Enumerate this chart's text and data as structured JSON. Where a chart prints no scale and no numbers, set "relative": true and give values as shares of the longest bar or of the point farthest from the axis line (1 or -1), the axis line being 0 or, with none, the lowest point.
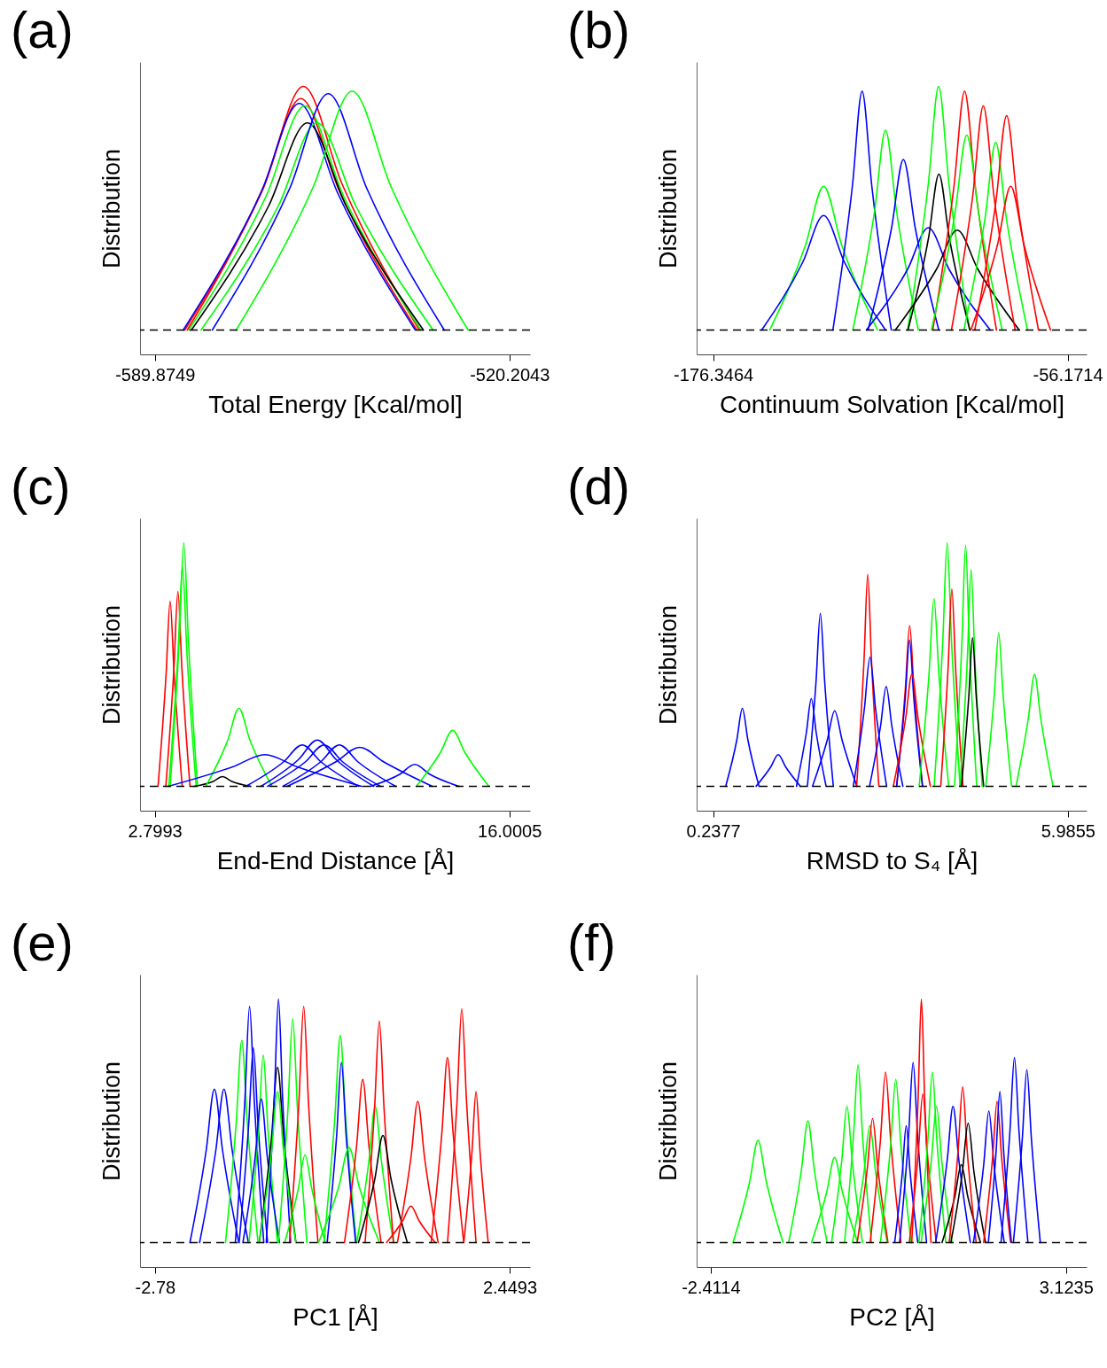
{
  "chart_data": [
    {
      "type": "line",
      "title": "(a)",
      "xlabel": "Total Energy [Kcal/mol]",
      "ylabel": "Distribution",
      "relative": true,
      "tick_labels": "x",
      "xlim": [
        -592.79,
        -516.15
      ],
      "xticks": [
        -589.8749,
        -520.2043
      ],
      "ref_lines": [
        {
          "axis": "y",
          "value": 0,
          "line_style": "dashed",
          "color": "#000000"
        }
      ],
      "series": [
        {
          "color": "#ff0000",
          "x": [
            -583.5,
            -568.3,
            -560.7,
            -553.1,
            -537.9
          ],
          "values": [
            0,
            0.6,
            1,
            0.6,
            0
          ]
        },
        {
          "color": "#ff0000",
          "x": [
            -584.0,
            -568.8,
            -561.2,
            -553.6,
            -538.4
          ],
          "values": [
            0,
            0.57,
            0.95,
            0.57,
            0
          ]
        },
        {
          "color": "#0000ff",
          "x": [
            -584.3,
            -569.1,
            -561.5,
            -553.9,
            -538.7
          ],
          "values": [
            0,
            0.56,
            0.93,
            0.56,
            0
          ]
        },
        {
          "color": "#00ff00",
          "x": [
            -583.2,
            -568.0,
            -560.4,
            -552.8,
            -537.6
          ],
          "values": [
            0,
            0.55,
            0.92,
            0.55,
            0
          ]
        },
        {
          "color": "#000000",
          "x": [
            -582.7,
            -567.5,
            -559.9,
            -552.3,
            -537.1
          ],
          "values": [
            0,
            0.51,
            0.85,
            0.51,
            0
          ]
        },
        {
          "color": "#00ff00",
          "x": [
            -580.8,
            -565.6,
            -558.0,
            -550.4,
            -535.2
          ],
          "values": [
            0,
            0.51,
            0.85,
            0.51,
            0
          ]
        },
        {
          "color": "#0000ff",
          "x": [
            -578.6,
            -563.4,
            -555.8,
            -548.2,
            -533.0
          ],
          "values": [
            0,
            0.58,
            0.97,
            0.58,
            0
          ]
        },
        {
          "color": "#00ff00",
          "x": [
            -573.9,
            -558.7,
            -551.1,
            -543.5,
            -528.3
          ],
          "values": [
            0,
            0.59,
            0.98,
            0.59,
            0
          ]
        }
      ]
    },
    {
      "type": "line",
      "title": "(b)",
      "xlabel": "Continuum Solvation [Kcal/mol]",
      "ylabel": "Distribution",
      "relative": true,
      "tick_labels": "x",
      "xlim": [
        -181.95,
        -49.73
      ],
      "xticks": [
        -176.3464,
        -56.1714
      ],
      "ref_lines": [
        {
          "axis": "y",
          "value": 0,
          "line_style": "dashed",
          "color": "#000000"
        }
      ],
      "series": [
        {
          "color": "#00ff00",
          "x": [
            -157.2,
            -145.0,
            -138.9,
            -132.8,
            -120.6
          ],
          "values": [
            0,
            0.35,
            0.59,
            0.35,
            0
          ]
        },
        {
          "color": "#0000ff",
          "x": [
            -159.9,
            -145.9,
            -138.9,
            -131.9,
            -117.9
          ],
          "values": [
            0,
            0.28,
            0.47,
            0.28,
            0
          ]
        },
        {
          "color": "#0000ff",
          "x": [
            -135.75,
            -129.15,
            -125.85,
            -122.55,
            -115.95
          ],
          "values": [
            0,
            0.59,
            0.98,
            0.59,
            0
          ]
        },
        {
          "color": "#00ff00",
          "x": [
            -129.0,
            -121.6,
            -117.9,
            -114.2,
            -106.8
          ],
          "values": [
            0,
            0.49,
            0.82,
            0.49,
            0
          ]
        },
        {
          "color": "#0000ff",
          "x": [
            -123.85,
            -115.85,
            -111.85,
            -107.85,
            -99.85
          ],
          "values": [
            0,
            0.42,
            0.7,
            0.42,
            0
          ]
        },
        {
          "color": "#0000ff",
          "x": [
            -124.4,
            -110.4,
            -103.4,
            -96.4,
            -82.4
          ],
          "values": [
            0,
            0.25,
            0.42,
            0.25,
            0
          ]
        },
        {
          "color": "#00ff00",
          "x": [
            -110.4,
            -103.4,
            -99.9,
            -96.4,
            -89.4
          ],
          "values": [
            0,
            0.6,
            1,
            0.6,
            0
          ]
        },
        {
          "color": "#000000",
          "x": [
            -110.3,
            -103.3,
            -99.8,
            -96.3,
            -89.3
          ],
          "values": [
            0,
            0.38,
            0.64,
            0.38,
            0
          ]
        },
        {
          "color": "#000000",
          "x": [
            -114.6,
            -100.6,
            -93.6,
            -86.6,
            -72.6
          ],
          "values": [
            0,
            0.25,
            0.41,
            0.25,
            0
          ]
        },
        {
          "color": "#ff0000",
          "x": [
            -101.9,
            -94.7,
            -91.1,
            -87.5,
            -80.3
          ],
          "values": [
            0,
            0.59,
            0.98,
            0.59,
            0
          ]
        },
        {
          "color": "#00ff00",
          "x": [
            -102.35,
            -94.35,
            -90.35,
            -86.35,
            -78.35
          ],
          "values": [
            0,
            0.48,
            0.8,
            0.48,
            0
          ]
        },
        {
          "color": "#ff0000",
          "x": [
            -95.55,
            -88.35,
            -84.75,
            -81.15,
            -73.95
          ],
          "values": [
            0,
            0.55,
            0.92,
            0.55,
            0
          ]
        },
        {
          "color": "#00ff00",
          "x": [
            -91.35,
            -84.15,
            -80.55,
            -76.95,
            -69.75
          ],
          "values": [
            0,
            0.46,
            0.77,
            0.46,
            0
          ]
        },
        {
          "color": "#ff0000",
          "x": [
            -87.65,
            -80.45,
            -76.85,
            -73.25,
            -66.05
          ],
          "values": [
            0,
            0.53,
            0.88,
            0.53,
            0
          ]
        },
        {
          "color": "#ff0000",
          "x": [
            -88.95,
            -79.95,
            -75.45,
            -70.95,
            -61.95
          ],
          "values": [
            0,
            0.35,
            0.59,
            0.35,
            0
          ]
        }
      ]
    },
    {
      "type": "line",
      "title": "(c)",
      "xlabel": "End-End Distance [Å]",
      "ylabel": "Distribution",
      "relative": true,
      "tick_labels": "x",
      "xlim": [
        2.25,
        16.77
      ],
      "xticks": [
        2.7993,
        16.0005
      ],
      "ref_lines": [
        {
          "axis": "y",
          "value": 0,
          "line_style": "dashed",
          "color": "#000000"
        }
      ],
      "series": [
        {
          "color": "#ff0000",
          "x": [
            2.92,
            3.22,
            3.37,
            3.52,
            3.82
          ],
          "values": [
            0,
            0.46,
            0.76,
            0.46,
            0
          ]
        },
        {
          "color": "#ff0000",
          "x": [
            3.21,
            3.51,
            3.66,
            3.81,
            4.11
          ],
          "values": [
            0,
            0.48,
            0.8,
            0.48,
            0
          ]
        },
        {
          "color": "#00ff00",
          "x": [
            3.32,
            3.66,
            3.83,
            4.0,
            4.34
          ],
          "values": [
            0,
            0.54,
            0.9,
            0.54,
            0
          ]
        },
        {
          "color": "#00ff00",
          "x": [
            3.37,
            3.71,
            3.88,
            4.05,
            4.39
          ],
          "values": [
            0,
            0.6,
            1,
            0.6,
            0
          ]
        },
        {
          "color": "#000000",
          "x": [
            4.27,
            4.97,
            5.32,
            5.67,
            6.37
          ],
          "values": [
            0,
            0.02,
            0.04,
            0.02,
            0
          ]
        },
        {
          "color": "#00ff00",
          "x": [
            4.7,
            5.52,
            5.93,
            6.34,
            7.16
          ],
          "values": [
            0,
            0.19,
            0.32,
            0.19,
            0
          ]
        },
        {
          "color": "#0000ff",
          "x": [
            3.3,
            5.7,
            6.9,
            8.1,
            10.5
          ],
          "values": [
            0,
            0.08,
            0.13,
            0.08,
            0
          ]
        },
        {
          "color": "#0000ff",
          "x": [
            6.19,
            7.59,
            8.29,
            8.99,
            10.39
          ],
          "values": [
            0,
            0.1,
            0.17,
            0.1,
            0
          ]
        },
        {
          "color": "#0000ff",
          "x": [
            6.75,
            8.15,
            8.85,
            9.55,
            10.95
          ],
          "values": [
            0,
            0.11,
            0.19,
            0.11,
            0
          ]
        },
        {
          "color": "#0000ff",
          "x": [
            7.0,
            8.4,
            9.1,
            9.8,
            11.2
          ],
          "values": [
            0,
            0.1,
            0.17,
            0.1,
            0
          ]
        },
        {
          "color": "#0000ff",
          "x": [
            7.57,
            8.97,
            9.67,
            10.37,
            11.77
          ],
          "values": [
            0,
            0.1,
            0.17,
            0.1,
            0
          ]
        },
        {
          "color": "#0000ff",
          "x": [
            7.73,
            9.53,
            10.43,
            11.33,
            13.13
          ],
          "values": [
            0,
            0.1,
            0.16,
            0.1,
            0
          ]
        },
        {
          "color": "#0000ff",
          "x": [
            10.83,
            11.93,
            12.48,
            13.03,
            14.13
          ],
          "values": [
            0,
            0.05,
            0.09,
            0.05,
            0
          ]
        },
        {
          "color": "#00ff00",
          "x": [
            12.54,
            13.44,
            13.89,
            14.34,
            15.24
          ],
          "values": [
            0,
            0.14,
            0.23,
            0.14,
            0
          ]
        }
      ]
    },
    {
      "type": "line",
      "title": "(d)",
      "xlabel": "RMSD to S₄ [Å]",
      "ylabel": "Distribution",
      "relative": true,
      "tick_labels": "x",
      "xlim": [
        -0.03,
        6.29
      ],
      "xticks": [
        0.2377,
        5.9855
      ],
      "ref_lines": [
        {
          "axis": "y",
          "value": 0,
          "line_style": "dashed",
          "color": "#000000"
        }
      ],
      "series": [
        {
          "color": "#0000ff",
          "x": [
            0.441,
            0.621,
            0.711,
            0.801,
            0.981
          ],
          "values": [
            0,
            0.19,
            0.32,
            0.19,
            0
          ]
        },
        {
          "color": "#0000ff",
          "x": [
            0.932,
            1.172,
            1.292,
            1.412,
            1.652
          ],
          "values": [
            0,
            0.08,
            0.13,
            0.08,
            0
          ]
        },
        {
          "color": "#0000ff",
          "x": [
            1.588,
            1.748,
            1.828,
            1.908,
            2.068
          ],
          "values": [
            0,
            0.22,
            0.36,
            0.22,
            0
          ]
        },
        {
          "color": "#0000ff",
          "x": [
            1.765,
            1.905,
            1.975,
            2.045,
            2.185
          ],
          "values": [
            0,
            0.43,
            0.71,
            0.43,
            0
          ]
        },
        {
          "color": "#0000ff",
          "x": [
            1.847,
            2.087,
            2.207,
            2.327,
            2.567
          ],
          "values": [
            0,
            0.19,
            0.31,
            0.19,
            0
          ]
        },
        {
          "color": "#ff0000",
          "x": [
            2.563,
            2.683,
            2.743,
            2.803,
            2.923
          ],
          "values": [
            0,
            0.52,
            0.87,
            0.52,
            0
          ]
        },
        {
          "color": "#0000ff",
          "x": [
            2.509,
            2.689,
            2.779,
            2.869,
            3.049
          ],
          "values": [
            0,
            0.32,
            0.53,
            0.32,
            0
          ]
        },
        {
          "color": "#0000ff",
          "x": [
            2.772,
            2.952,
            3.042,
            3.132,
            3.312
          ],
          "values": [
            0,
            0.25,
            0.41,
            0.25,
            0
          ]
        },
        {
          "color": "#ff0000",
          "x": [
            3.212,
            3.352,
            3.422,
            3.492,
            3.632
          ],
          "values": [
            0,
            0.4,
            0.66,
            0.4,
            0
          ]
        },
        {
          "color": "#0000ff",
          "x": [
            3.21,
            3.35,
            3.42,
            3.49,
            3.63
          ],
          "values": [
            0,
            0.36,
            0.6,
            0.36,
            0
          ]
        },
        {
          "color": "#ff0000",
          "x": [
            3.158,
            3.358,
            3.458,
            3.558,
            3.758
          ],
          "values": [
            0,
            0.28,
            0.46,
            0.28,
            0
          ]
        },
        {
          "color": "#00ff00",
          "x": [
            3.576,
            3.736,
            3.816,
            3.896,
            4.056
          ],
          "values": [
            0,
            0.46,
            0.77,
            0.46,
            0
          ]
        },
        {
          "color": "#00ff00",
          "x": [
            3.82,
            3.96,
            4.03,
            4.1,
            4.24
          ],
          "values": [
            0,
            0.6,
            1,
            0.6,
            0
          ]
        },
        {
          "color": "#ff0000",
          "x": [
            3.926,
            4.046,
            4.106,
            4.166,
            4.286
          ],
          "values": [
            0,
            0.49,
            0.81,
            0.49,
            0
          ]
        },
        {
          "color": "#00ff00",
          "x": [
            4.149,
            4.269,
            4.329,
            4.389,
            4.509
          ],
          "values": [
            0,
            0.59,
            0.99,
            0.59,
            0
          ]
        },
        {
          "color": "#00ff00",
          "x": [
            4.238,
            4.358,
            4.418,
            4.478,
            4.598
          ],
          "values": [
            0,
            0.53,
            0.89,
            0.53,
            0
          ]
        },
        {
          "color": "#000000",
          "x": [
            4.261,
            4.381,
            4.441,
            4.501,
            4.621
          ],
          "values": [
            0,
            0.37,
            0.61,
            0.37,
            0
          ]
        },
        {
          "color": "#00ff00",
          "x": [
            4.655,
            4.795,
            4.865,
            4.935,
            5.075
          ],
          "values": [
            0,
            0.38,
            0.63,
            0.38,
            0
          ]
        },
        {
          "color": "#00ff00",
          "x": [
            5.146,
            5.346,
            5.446,
            5.546,
            5.746
          ],
          "values": [
            0,
            0.28,
            0.46,
            0.28,
            0
          ]
        }
      ]
    },
    {
      "type": "line",
      "title": "(e)",
      "xlabel": "PC1 [Å]",
      "ylabel": "Distribution",
      "relative": true,
      "tick_labels": "x",
      "xlim": [
        -3.0,
        2.75
      ],
      "xticks": [
        -2.78,
        2.4493
      ],
      "ref_lines": [
        {
          "axis": "y",
          "value": 0,
          "line_style": "dashed",
          "color": "#000000"
        }
      ],
      "series": [
        {
          "color": "#0000ff",
          "x": [
            -2.264,
            -2.024,
            -1.904,
            -1.784,
            -1.544
          ],
          "values": [
            0,
            0.38,
            0.63,
            0.38,
            0
          ]
        },
        {
          "color": "#0000ff",
          "x": [
            -2.122,
            -1.882,
            -1.762,
            -1.642,
            -1.402
          ],
          "values": [
            0,
            0.38,
            0.63,
            0.38,
            0
          ]
        },
        {
          "color": "#00ff00",
          "x": [
            -1.74,
            -1.58,
            -1.5,
            -1.42,
            -1.26
          ],
          "values": [
            0,
            0.5,
            0.83,
            0.5,
            0
          ]
        },
        {
          "color": "#0000ff",
          "x": [
            -1.595,
            -1.455,
            -1.385,
            -1.315,
            -1.175
          ],
          "values": [
            0,
            0.58,
            0.97,
            0.58,
            0
          ]
        },
        {
          "color": "#0000ff",
          "x": [
            -1.539,
            -1.399,
            -1.329,
            -1.259,
            -1.119
          ],
          "values": [
            0,
            0.48,
            0.8,
            0.48,
            0
          ]
        },
        {
          "color": "#00ff00",
          "x": [
            -1.393,
            -1.253,
            -1.183,
            -1.113,
            -0.973
          ],
          "values": [
            0,
            0.46,
            0.77,
            0.46,
            0
          ]
        },
        {
          "color": "#0000ff",
          "x": [
            -1.483,
            -1.303,
            -1.213,
            -1.123,
            -0.943
          ],
          "values": [
            0,
            0.35,
            0.59,
            0.35,
            0
          ]
        },
        {
          "color": "#000000",
          "x": [
            -1.242,
            -1.062,
            -0.972,
            -0.882,
            -0.702
          ],
          "values": [
            0,
            0.43,
            0.72,
            0.43,
            0
          ]
        },
        {
          "color": "#0000ff",
          "x": [
            -1.139,
            -1.019,
            -0.959,
            -0.899,
            -0.779
          ],
          "values": [
            0,
            0.6,
            1,
            0.6,
            0
          ]
        },
        {
          "color": "#00ff00",
          "x": [
            -1.242,
            -1.062,
            -0.972,
            -0.882,
            -0.702
          ],
          "values": [
            0,
            0.37,
            0.62,
            0.37,
            0
          ]
        },
        {
          "color": "#00ff00",
          "x": [
            -0.959,
            -0.819,
            -0.749,
            -0.679,
            -0.539
          ],
          "values": [
            0,
            0.55,
            0.92,
            0.55,
            0
          ]
        },
        {
          "color": "#ff0000",
          "x": [
            -0.797,
            -0.657,
            -0.587,
            -0.517,
            -0.377
          ],
          "values": [
            0,
            0.58,
            0.97,
            0.58,
            0
          ]
        },
        {
          "color": "#00ff00",
          "x": [
            -0.867,
            -0.667,
            -0.567,
            -0.467,
            -0.267
          ],
          "values": [
            0,
            0.22,
            0.36,
            0.22,
            0
          ]
        },
        {
          "color": "#00ff00",
          "x": [
            -0.288,
            -0.128,
            -0.048,
            0.032,
            0.192
          ],
          "values": [
            0,
            0.51,
            0.85,
            0.51,
            0
          ]
        },
        {
          "color": "#0000ff",
          "x": [
            -0.241,
            -0.101,
            -0.031,
            0.039,
            0.179
          ],
          "values": [
            0,
            0.44,
            0.74,
            0.44,
            0
          ]
        },
        {
          "color": "#00ff00",
          "x": [
            -0.369,
            -0.069,
            0.081,
            0.231,
            0.531
          ],
          "values": [
            0,
            0.23,
            0.39,
            0.23,
            0
          ]
        },
        {
          "color": "#ff0000",
          "x": [
            0.014,
            0.194,
            0.284,
            0.374,
            0.554
          ],
          "values": [
            0,
            0.4,
            0.67,
            0.4,
            0
          ]
        },
        {
          "color": "#00ff00",
          "x": [
            0.197,
            0.377,
            0.467,
            0.557,
            0.737
          ],
          "values": [
            0,
            0.34,
            0.56,
            0.34,
            0
          ]
        },
        {
          "color": "#ff0000",
          "x": [
            0.318,
            0.458,
            0.528,
            0.598,
            0.738
          ],
          "values": [
            0,
            0.55,
            0.91,
            0.55,
            0
          ]
        },
        {
          "color": "#000000",
          "x": [
            0.221,
            0.461,
            0.581,
            0.701,
            0.941
          ],
          "values": [
            0,
            0.26,
            0.44,
            0.26,
            0
          ]
        },
        {
          "color": "#ff0000",
          "x": [
            0.634,
            0.874,
            0.994,
            1.114,
            1.354
          ],
          "values": [
            0,
            0.09,
            0.15,
            0.09,
            0
          ]
        },
        {
          "color": "#ff0000",
          "x": [
            0.795,
            0.995,
            1.095,
            1.195,
            1.395
          ],
          "values": [
            0,
            0.35,
            0.58,
            0.35,
            0
          ]
        },
        {
          "color": "#ff0000",
          "x": [
            1.293,
            1.453,
            1.533,
            1.613,
            1.773
          ],
          "values": [
            0,
            0.46,
            0.76,
            0.46,
            0
          ]
        },
        {
          "color": "#ff0000",
          "x": [
            1.534,
            1.674,
            1.744,
            1.814,
            1.954
          ],
          "values": [
            0,
            0.58,
            0.96,
            0.58,
            0
          ]
        },
        {
          "color": "#ff0000",
          "x": [
            1.774,
            1.894,
            1.954,
            2.014,
            2.134
          ],
          "values": [
            0,
            0.37,
            0.62,
            0.37,
            0
          ]
        }
      ]
    },
    {
      "type": "line",
      "title": "(f)",
      "xlabel": "PC2 [Å]",
      "ylabel": "Distribution",
      "relative": true,
      "tick_labels": "x",
      "xlim": [
        -2.63,
        3.445
      ],
      "xticks": [
        -2.4114,
        3.1235
      ],
      "ref_lines": [
        {
          "axis": "y",
          "value": 0,
          "line_style": "dashed",
          "color": "#000000"
        }
      ],
      "series": [
        {
          "color": "#00ff00",
          "x": [
            -2.064,
            -1.804,
            -1.674,
            -1.544,
            -1.284
          ],
          "values": [
            0,
            0.25,
            0.42,
            0.25,
            0
          ]
        },
        {
          "color": "#00ff00",
          "x": [
            -1.197,
            -0.997,
            -0.897,
            -0.797,
            -0.597
          ],
          "values": [
            0,
            0.3,
            0.5,
            0.3,
            0
          ]
        },
        {
          "color": "#00ff00",
          "x": [
            -0.841,
            -0.601,
            -0.481,
            -0.361,
            -0.121
          ],
          "values": [
            0,
            0.21,
            0.35,
            0.21,
            0
          ]
        },
        {
          "color": "#00ff00",
          "x": [
            -0.528,
            -0.368,
            -0.288,
            -0.208,
            -0.048
          ],
          "values": [
            0,
            0.34,
            0.56,
            0.34,
            0
          ]
        },
        {
          "color": "#00ff00",
          "x": [
            -0.326,
            -0.186,
            -0.116,
            -0.046,
            0.094
          ],
          "values": [
            0,
            0.44,
            0.73,
            0.44,
            0
          ]
        },
        {
          "color": "#00ff00",
          "x": [
            -0.202,
            -0.022,
            0.068,
            0.158,
            0.338
          ],
          "values": [
            0,
            0.29,
            0.48,
            0.29,
            0
          ]
        },
        {
          "color": "#ff0000",
          "x": [
            -0.129,
            0.031,
            0.111,
            0.191,
            0.351
          ],
          "values": [
            0,
            0.31,
            0.51,
            0.31,
            0
          ]
        },
        {
          "color": "#ff0000",
          "x": [
            0.073,
            0.233,
            0.313,
            0.393,
            0.553
          ],
          "values": [
            0,
            0.42,
            0.7,
            0.42,
            0
          ]
        },
        {
          "color": "#00ff00",
          "x": [
            0.232,
            0.392,
            0.472,
            0.552,
            0.712
          ],
          "values": [
            0,
            0.4,
            0.67,
            0.4,
            0
          ]
        },
        {
          "color": "#0000ff",
          "x": [
            0.455,
            0.575,
            0.635,
            0.695,
            0.815
          ],
          "values": [
            0,
            0.29,
            0.48,
            0.29,
            0
          ]
        },
        {
          "color": "#0000ff",
          "x": [
            0.532,
            0.672,
            0.742,
            0.812,
            0.952
          ],
          "values": [
            0,
            0.44,
            0.74,
            0.44,
            0
          ]
        },
        {
          "color": "#ff0000",
          "x": [
            0.721,
            0.821,
            0.871,
            0.921,
            1.021
          ],
          "values": [
            0,
            0.6,
            1,
            0.6,
            0
          ]
        },
        {
          "color": "#ff0000",
          "x": [
            0.683,
            0.823,
            0.893,
            0.963,
            1.103
          ],
          "values": [
            0,
            0.37,
            0.61,
            0.37,
            0
          ]
        },
        {
          "color": "#00ff00",
          "x": [
            0.832,
            0.972,
            1.042,
            1.112,
            1.252
          ],
          "values": [
            0,
            0.42,
            0.7,
            0.42,
            0
          ]
        },
        {
          "color": "#00ff00",
          "x": [
            0.867,
            1.027,
            1.107,
            1.187,
            1.347
          ],
          "values": [
            0,
            0.34,
            0.56,
            0.34,
            0
          ]
        },
        {
          "color": "#0000ff",
          "x": [
            1.094,
            1.274,
            1.364,
            1.454,
            1.634
          ],
          "values": [
            0,
            0.34,
            0.56,
            0.34,
            0
          ]
        },
        {
          "color": "#000000",
          "x": [
            1.193,
            1.393,
            1.493,
            1.593,
            1.793
          ],
          "values": [
            0,
            0.19,
            0.32,
            0.19,
            0
          ]
        },
        {
          "color": "#ff0000",
          "x": [
            1.304,
            1.444,
            1.514,
            1.584,
            1.724
          ],
          "values": [
            0,
            0.38,
            0.64,
            0.38,
            0
          ]
        },
        {
          "color": "#000000",
          "x": [
            1.33,
            1.51,
            1.6,
            1.69,
            1.87
          ],
          "values": [
            0,
            0.29,
            0.49,
            0.29,
            0
          ]
        },
        {
          "color": "#0000ff",
          "x": [
            1.682,
            1.842,
            1.922,
            2.002,
            2.162
          ],
          "values": [
            0,
            0.32,
            0.54,
            0.32,
            0
          ]
        },
        {
          "color": "#ff0000",
          "x": [
            1.841,
            1.981,
            2.051,
            2.121,
            2.261
          ],
          "values": [
            0,
            0.35,
            0.58,
            0.35,
            0
          ]
        },
        {
          "color": "#0000ff",
          "x": [
            1.914,
            2.034,
            2.094,
            2.154,
            2.274
          ],
          "values": [
            0,
            0.37,
            0.62,
            0.37,
            0
          ]
        },
        {
          "color": "#0000ff",
          "x": [
            2.111,
            2.251,
            2.321,
            2.391,
            2.531
          ],
          "values": [
            0,
            0.46,
            0.76,
            0.46,
            0
          ]
        },
        {
          "color": "#0000ff",
          "x": [
            2.304,
            2.444,
            2.514,
            2.584,
            2.724
          ],
          "values": [
            0,
            0.43,
            0.71,
            0.43,
            0
          ]
        }
      ]
    }
  ]
}
